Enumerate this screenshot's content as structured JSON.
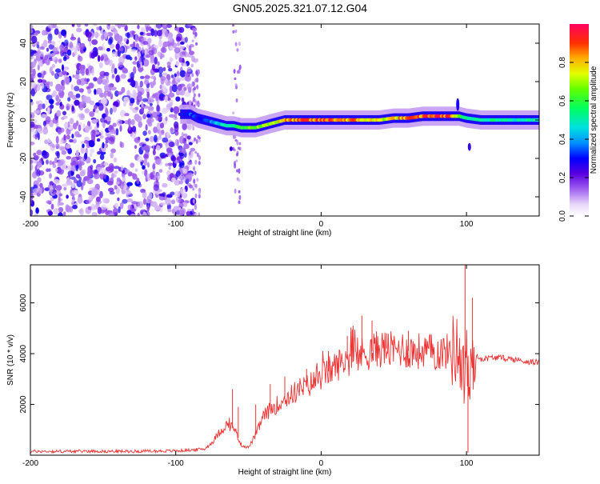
{
  "title": "GN05.2025.321.07.12.G04",
  "chart_data": [
    {
      "type": "heatmap",
      "title": "",
      "xlabel": "Height of straight line (km)",
      "ylabel": "Frequency (Hz)",
      "xlim": [
        -200,
        150
      ],
      "ylim": [
        -50,
        50
      ],
      "xticks": [
        -200,
        -100,
        0,
        100
      ],
      "yticks": [
        -40,
        -20,
        0,
        20,
        40
      ],
      "ridge": {
        "x": [
          -97,
          -90,
          -85,
          -80,
          -75,
          -70,
          -65,
          -60,
          -55,
          -50,
          -45,
          -40,
          -35,
          -30,
          -25,
          -20,
          -15,
          -10,
          -5,
          0,
          10,
          20,
          30,
          40,
          50,
          60,
          70,
          80,
          90,
          95,
          100,
          110,
          120,
          130,
          140,
          150
        ],
        "y": [
          3,
          3,
          1,
          0,
          -1,
          -2,
          -3,
          -3,
          -4,
          -4,
          -4,
          -3,
          -2,
          -1,
          0,
          0,
          0,
          0,
          0,
          0,
          0,
          0,
          0,
          0,
          1,
          1,
          2,
          2,
          2,
          2,
          1,
          0,
          0,
          0,
          0,
          0
        ],
        "amplitude": [
          0.3,
          0.35,
          0.3,
          0.35,
          0.4,
          0.45,
          0.5,
          0.55,
          0.6,
          0.65,
          0.7,
          0.7,
          0.75,
          0.75,
          0.8,
          0.85,
          0.85,
          0.9,
          0.85,
          0.9,
          0.9,
          0.85,
          0.8,
          0.75,
          0.8,
          0.85,
          0.9,
          0.95,
          0.9,
          0.6,
          0.5,
          0.55,
          0.55,
          0.5,
          0.5,
          0.5
        ]
      },
      "colorbar": {
        "label": "Normalized spectral amplitude",
        "ticks": [
          0.0,
          0.2,
          0.4,
          0.6,
          0.8
        ],
        "range": [
          0,
          1
        ]
      }
    },
    {
      "type": "line",
      "title": "",
      "xlabel": "Height of straight line (km)",
      "ylabel": "SNR (10 * v/v)",
      "xlim": [
        -200,
        150
      ],
      "ylim": [
        0,
        7500
      ],
      "xticks": [
        -200,
        -100,
        0,
        100
      ],
      "yticks": [
        2000,
        4000,
        6000
      ],
      "series": [
        {
          "name": "SNR",
          "color": "#ee3333",
          "x": [
            -200,
            -180,
            -160,
            -140,
            -120,
            -100,
            -90,
            -80,
            -75,
            -70,
            -65,
            -60,
            -55,
            -50,
            -45,
            -40,
            -35,
            -30,
            -25,
            -20,
            -15,
            -10,
            -5,
            0,
            5,
            10,
            15,
            20,
            25,
            30,
            35,
            40,
            45,
            50,
            55,
            60,
            70,
            80,
            90,
            95,
            98,
            100,
            102,
            105,
            110,
            120,
            130,
            140,
            150
          ],
          "y": [
            150,
            150,
            160,
            150,
            160,
            170,
            200,
            250,
            500,
            900,
            1200,
            1100,
            400,
            300,
            800,
            1500,
            1800,
            2000,
            2200,
            2400,
            2600,
            2700,
            2900,
            3100,
            3300,
            3500,
            3700,
            3800,
            3900,
            4000,
            4100,
            4200,
            4200,
            4100,
            4200,
            4100,
            4100,
            4050,
            4100,
            4200,
            3000,
            4200,
            2500,
            3900,
            3800,
            3850,
            3800,
            3700,
            3650
          ],
          "spikes": [
            {
              "x": -61,
              "y": 2600
            },
            {
              "x": -57,
              "y": 1900
            },
            {
              "x": -45,
              "y": 2000
            },
            {
              "x": -35,
              "y": 2800
            },
            {
              "x": -25,
              "y": 3100
            },
            {
              "x": -10,
              "y": 3400
            },
            {
              "x": 5,
              "y": 4100
            },
            {
              "x": 18,
              "y": 4700
            },
            {
              "x": 22,
              "y": 5100
            },
            {
              "x": 28,
              "y": 5500
            },
            {
              "x": 35,
              "y": 5300
            },
            {
              "x": 45,
              "y": 4800
            },
            {
              "x": 60,
              "y": 4900
            },
            {
              "x": 99,
              "y": 7500
            },
            {
              "x": 101,
              "y": 100
            },
            {
              "x": 104,
              "y": 6200
            }
          ]
        }
      ]
    }
  ]
}
